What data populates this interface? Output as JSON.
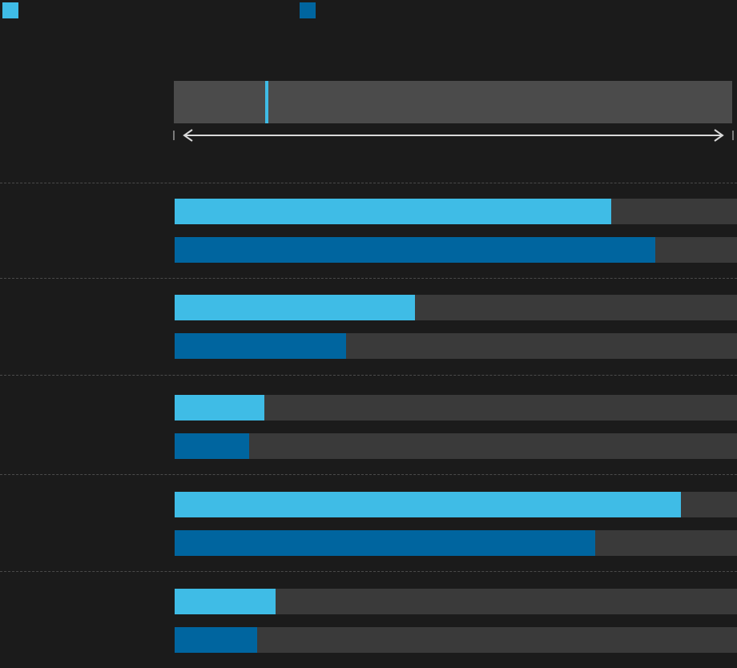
{
  "colors": {
    "series_a": "#3fbce6",
    "series_b": "#00659f",
    "track": "#3a3a3a",
    "overview_track": "#4b4b4b",
    "background": "#1b1b1b"
  },
  "legend": [
    {
      "name": "",
      "color": "#3fbce6"
    },
    {
      "name": "",
      "color": "#00659f"
    }
  ],
  "overview": {
    "marker_fraction": 0.167,
    "marker_color": "#3fbce6"
  },
  "chart_data": {
    "type": "bar",
    "orientation": "horizontal",
    "title": "",
    "xlabel": "",
    "ylabel": "",
    "xlim": [
      0,
      1
    ],
    "grid": false,
    "legend_position": "top-left",
    "categories": [
      "",
      "",
      "",
      "",
      ""
    ],
    "series": [
      {
        "name": "",
        "color": "#3fbce6",
        "values": [
          0.777,
          0.427,
          0.16,
          0.9,
          0.18
        ]
      },
      {
        "name": "",
        "color": "#00659f",
        "values": [
          0.855,
          0.305,
          0.132,
          0.748,
          0.147
        ]
      }
    ]
  }
}
